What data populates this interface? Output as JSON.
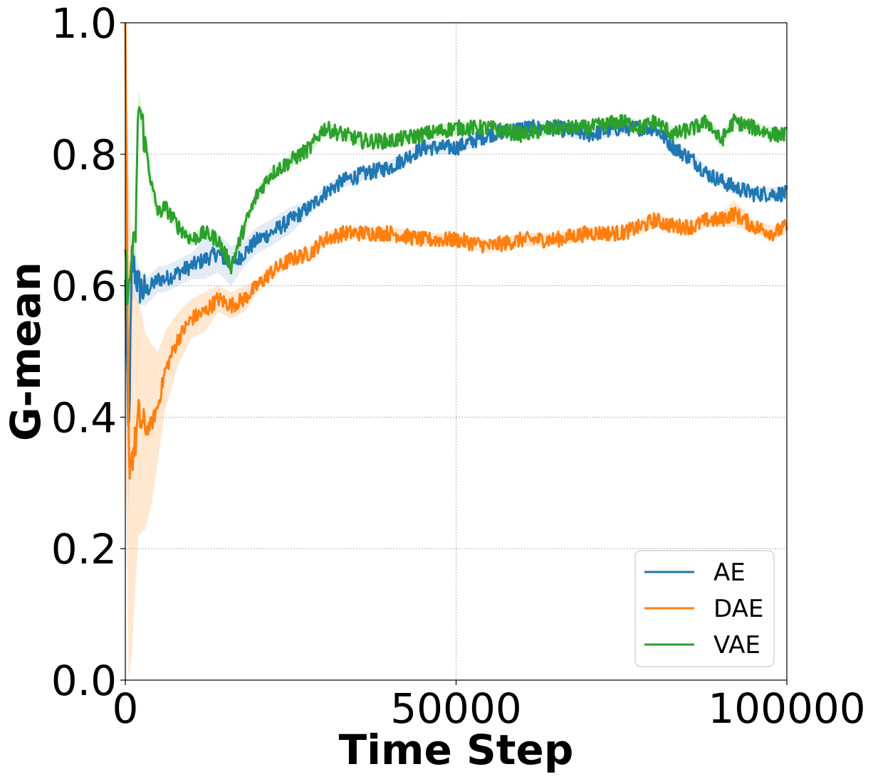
{
  "chart_data": {
    "type": "line",
    "title": "",
    "xlabel": "Time Step",
    "ylabel": "G-mean",
    "xlim": [
      0,
      100000
    ],
    "ylim": [
      0.0,
      1.0
    ],
    "x_ticks": [
      "0",
      "50000",
      "100000"
    ],
    "x_tick_values": [
      0,
      50000,
      100000
    ],
    "y_ticks": [
      "0.0",
      "0.2",
      "0.4",
      "0.6",
      "0.8",
      "1.0"
    ],
    "y_tick_values": [
      0.0,
      0.2,
      0.4,
      0.6,
      0.8,
      1.0
    ],
    "grid": true,
    "legend_position": "bottom-right",
    "x": [
      0,
      500,
      1000,
      1500,
      2000,
      3000,
      4000,
      5000,
      6000,
      8000,
      10000,
      12000,
      14000,
      16000,
      18000,
      20000,
      22000,
      25000,
      28000,
      30000,
      33000,
      36000,
      40000,
      45000,
      50000,
      55000,
      60000,
      65000,
      70000,
      75000,
      78000,
      80000,
      83000,
      86000,
      88000,
      90000,
      92000,
      95000,
      98000,
      100000
    ],
    "series": [
      {
        "name": "AE",
        "color": "#1f77b4",
        "band_color": "#aec7e8",
        "values": [
          0.6,
          0.35,
          0.64,
          0.62,
          0.6,
          0.59,
          0.6,
          0.61,
          0.61,
          0.62,
          0.63,
          0.64,
          0.65,
          0.63,
          0.65,
          0.67,
          0.68,
          0.7,
          0.72,
          0.74,
          0.76,
          0.77,
          0.78,
          0.81,
          0.81,
          0.83,
          0.84,
          0.84,
          0.83,
          0.84,
          0.84,
          0.84,
          0.81,
          0.79,
          0.77,
          0.76,
          0.75,
          0.74,
          0.74,
          0.74
        ],
        "band": [
          0.12,
          0.1,
          0.06,
          0.04,
          0.03,
          0.02,
          0.02,
          0.02,
          0.02,
          0.02,
          0.02,
          0.03,
          0.03,
          0.03,
          0.02,
          0.02,
          0.02,
          0.02,
          0.01,
          0.01,
          0.01,
          0.01,
          0.01,
          0.01,
          0.01,
          0.01,
          0.01,
          0.01,
          0.01,
          0.01,
          0.01,
          0.01,
          0.01,
          0.01,
          0.01,
          0.01,
          0.01,
          0.01,
          0.01,
          0.01
        ]
      },
      {
        "name": "DAE",
        "color": "#ff7f0e",
        "band_color": "#ffbb78",
        "values": [
          1.0,
          0.33,
          0.34,
          0.36,
          0.4,
          0.38,
          0.39,
          0.42,
          0.47,
          0.52,
          0.55,
          0.56,
          0.58,
          0.57,
          0.58,
          0.6,
          0.62,
          0.64,
          0.65,
          0.67,
          0.68,
          0.68,
          0.68,
          0.67,
          0.67,
          0.66,
          0.67,
          0.67,
          0.68,
          0.68,
          0.69,
          0.7,
          0.69,
          0.69,
          0.7,
          0.7,
          0.71,
          0.69,
          0.68,
          0.69
        ],
        "band": [
          0.6,
          0.45,
          0.3,
          0.22,
          0.18,
          0.15,
          0.12,
          0.08,
          0.06,
          0.04,
          0.03,
          0.03,
          0.02,
          0.02,
          0.02,
          0.01,
          0.01,
          0.01,
          0.01,
          0.01,
          0.01,
          0.01,
          0.01,
          0.01,
          0.01,
          0.01,
          0.01,
          0.01,
          0.01,
          0.01,
          0.01,
          0.01,
          0.01,
          0.01,
          0.01,
          0.01,
          0.02,
          0.01,
          0.01,
          0.01
        ]
      },
      {
        "name": "VAE",
        "color": "#2ca02c",
        "band_color": "#98df8a",
        "values": [
          0.63,
          0.58,
          0.65,
          0.66,
          0.88,
          0.82,
          0.75,
          0.71,
          0.72,
          0.69,
          0.67,
          0.68,
          0.67,
          0.63,
          0.69,
          0.74,
          0.77,
          0.79,
          0.81,
          0.84,
          0.83,
          0.82,
          0.82,
          0.83,
          0.84,
          0.84,
          0.83,
          0.84,
          0.84,
          0.85,
          0.84,
          0.85,
          0.83,
          0.84,
          0.85,
          0.82,
          0.85,
          0.84,
          0.83,
          0.83
        ],
        "band": [
          0.04,
          0.04,
          0.03,
          0.02,
          0.02,
          0.02,
          0.02,
          0.01,
          0.01,
          0.01,
          0.01,
          0.01,
          0.01,
          0.01,
          0.01,
          0.01,
          0.01,
          0.01,
          0.01,
          0.01,
          0.01,
          0.01,
          0.01,
          0.01,
          0.01,
          0.01,
          0.01,
          0.01,
          0.01,
          0.01,
          0.01,
          0.01,
          0.01,
          0.01,
          0.01,
          0.01,
          0.01,
          0.01,
          0.01,
          0.01
        ]
      }
    ]
  }
}
